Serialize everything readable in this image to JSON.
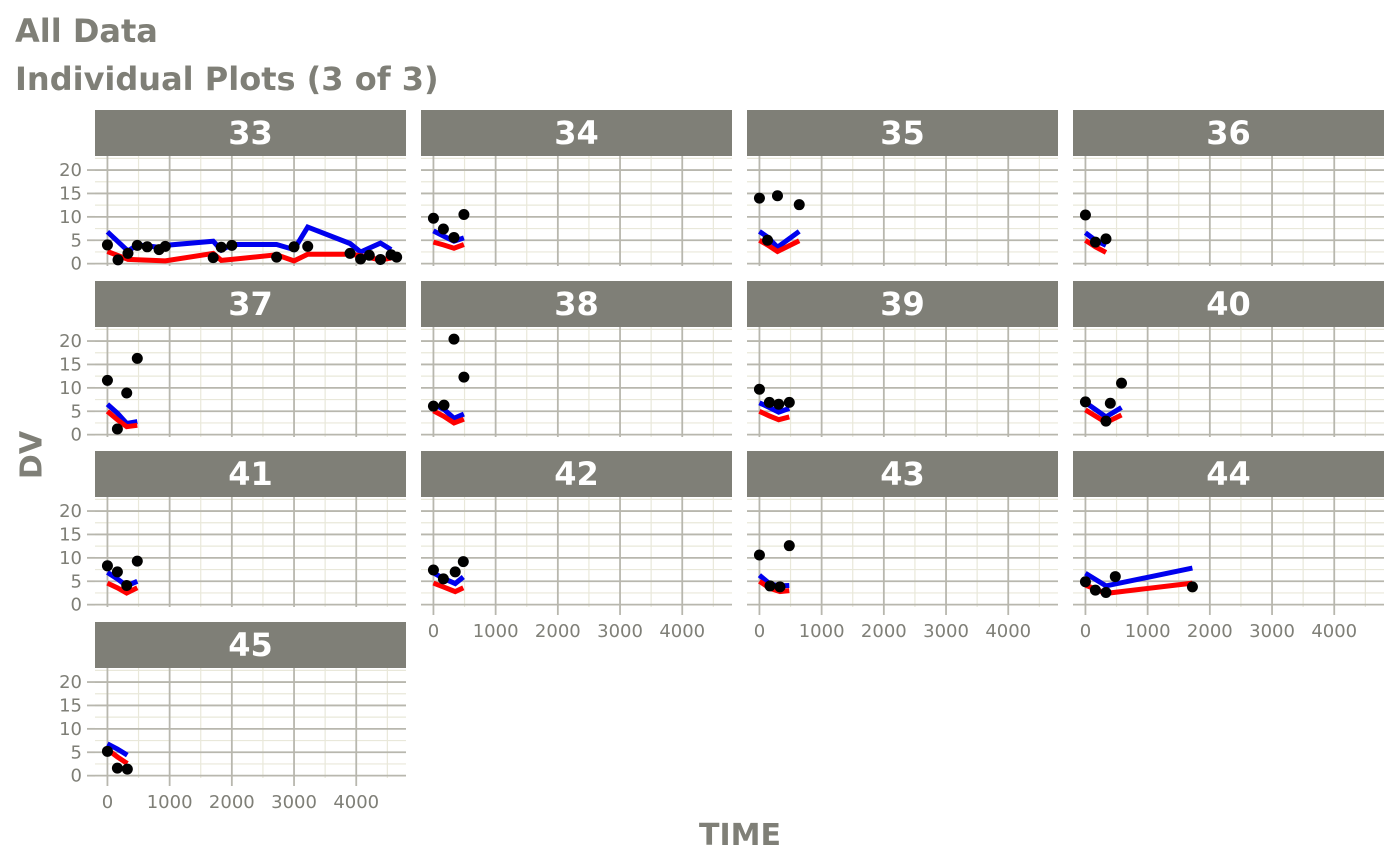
{
  "title": "All Data",
  "subtitle": "Individual Plots (3 of 3)",
  "xlabel": "TIME",
  "ylabel": "DV",
  "colors": {
    "strip_bg": "#7f7f77",
    "strip_text": "#ffffff",
    "grid_major": "#b8b7ae",
    "grid_minor": "#e9e8da",
    "axis_text": "#7f7f77",
    "observed": "#000000",
    "line_blue": "#0000ee",
    "line_red": "#ff0000"
  },
  "chart_data": {
    "type": "scatter",
    "layout": "facet-grid",
    "xlim": [
      -200,
      4800
    ],
    "ylim": [
      -0.5,
      23
    ],
    "x_ticks": [
      0,
      1000,
      2000,
      3000,
      4000
    ],
    "y_ticks": [
      0,
      5,
      10,
      15,
      20
    ],
    "x_tick_labels": [
      "0",
      "1000",
      "2000",
      "3000",
      "4000"
    ],
    "y_tick_labels": [
      "0",
      "5",
      "10",
      "15",
      "20"
    ],
    "grid": true,
    "facets": [
      {
        "id": "33",
        "points": [
          [
            0,
            4
          ],
          [
            170,
            0.8
          ],
          [
            330,
            2.2
          ],
          [
            480,
            3.9
          ],
          [
            640,
            3.6
          ],
          [
            830,
            3.0
          ],
          [
            930,
            3.7
          ],
          [
            1700,
            1.3
          ],
          [
            1830,
            3.5
          ],
          [
            2000,
            3.9
          ],
          [
            2720,
            1.4
          ],
          [
            3000,
            3.6
          ],
          [
            3220,
            3.7
          ],
          [
            3900,
            2.2
          ],
          [
            4070,
            1.0
          ],
          [
            4210,
            1.8
          ],
          [
            4390,
            0.9
          ],
          [
            4560,
            1.9
          ],
          [
            4650,
            1.4
          ]
        ],
        "blue": [
          [
            0,
            6.8
          ],
          [
            330,
            2.7
          ],
          [
            480,
            4.0
          ],
          [
            640,
            3.8
          ],
          [
            830,
            3.5
          ],
          [
            930,
            3.9
          ],
          [
            1700,
            4.8
          ],
          [
            1830,
            2.9
          ],
          [
            2000,
            4.1
          ],
          [
            2720,
            4.1
          ],
          [
            3000,
            3.0
          ],
          [
            3220,
            7.8
          ],
          [
            3900,
            4.3
          ],
          [
            4070,
            2.5
          ],
          [
            4390,
            4.4
          ],
          [
            4560,
            3.0
          ]
        ],
        "red": [
          [
            0,
            2.6
          ],
          [
            330,
            0.9
          ],
          [
            930,
            0.6
          ],
          [
            1700,
            2.2
          ],
          [
            1830,
            0.7
          ],
          [
            2000,
            0.9
          ],
          [
            2720,
            1.9
          ],
          [
            3000,
            0.6
          ],
          [
            3220,
            2.0
          ],
          [
            3900,
            2.0
          ],
          [
            4070,
            1.7
          ],
          [
            4390,
            0.8
          ],
          [
            4560,
            1.2
          ]
        ]
      },
      {
        "id": "34",
        "points": [
          [
            0,
            9.7
          ],
          [
            160,
            7.4
          ],
          [
            330,
            5.6
          ],
          [
            490,
            10.5
          ]
        ],
        "blue": [
          [
            0,
            7.0
          ],
          [
            160,
            5.9
          ],
          [
            330,
            4.8
          ],
          [
            490,
            5.5
          ]
        ],
        "red": [
          [
            0,
            4.6
          ],
          [
            160,
            4.0
          ],
          [
            330,
            3.3
          ],
          [
            490,
            4.1
          ]
        ]
      },
      {
        "id": "35",
        "points": [
          [
            0,
            14
          ],
          [
            130,
            5.0
          ],
          [
            290,
            14.5
          ],
          [
            640,
            12.6
          ]
        ],
        "blue": [
          [
            0,
            6.9
          ],
          [
            130,
            5.7
          ],
          [
            290,
            3.5
          ],
          [
            640,
            6.9
          ]
        ],
        "red": [
          [
            0,
            5.0
          ],
          [
            130,
            4.0
          ],
          [
            290,
            2.6
          ],
          [
            640,
            4.9
          ]
        ]
      },
      {
        "id": "36",
        "points": [
          [
            0,
            10.4
          ],
          [
            160,
            4.6
          ],
          [
            330,
            5.3
          ]
        ],
        "blue": [
          [
            0,
            6.6
          ],
          [
            160,
            5.0
          ],
          [
            330,
            3.9
          ]
        ],
        "red": [
          [
            0,
            5.0
          ],
          [
            160,
            3.6
          ],
          [
            330,
            2.4
          ]
        ]
      },
      {
        "id": "37",
        "points": [
          [
            0,
            11.6
          ],
          [
            160,
            1.2
          ],
          [
            310,
            8.9
          ],
          [
            480,
            16.3
          ]
        ],
        "blue": [
          [
            0,
            6.5
          ],
          [
            160,
            4.6
          ],
          [
            310,
            2.4
          ],
          [
            480,
            2.8
          ]
        ],
        "red": [
          [
            0,
            5.0
          ],
          [
            160,
            3.2
          ],
          [
            310,
            1.7
          ],
          [
            480,
            2.0
          ]
        ]
      },
      {
        "id": "38",
        "points": [
          [
            0,
            6.1
          ],
          [
            170,
            6.3
          ],
          [
            330,
            20.4
          ],
          [
            490,
            12.3
          ]
        ],
        "blue": [
          [
            0,
            6.5
          ],
          [
            170,
            5.4
          ],
          [
            330,
            3.5
          ],
          [
            490,
            4.4
          ]
        ],
        "red": [
          [
            0,
            5.1
          ],
          [
            170,
            3.9
          ],
          [
            330,
            2.5
          ],
          [
            490,
            3.3
          ]
        ]
      },
      {
        "id": "39",
        "points": [
          [
            0,
            9.7
          ],
          [
            160,
            6.9
          ],
          [
            310,
            6.5
          ],
          [
            480,
            6.9
          ]
        ],
        "blue": [
          [
            0,
            6.8
          ],
          [
            160,
            5.8
          ],
          [
            310,
            4.8
          ],
          [
            480,
            5.6
          ]
        ],
        "red": [
          [
            0,
            5.0
          ],
          [
            160,
            4.0
          ],
          [
            310,
            3.2
          ],
          [
            480,
            3.8
          ]
        ]
      },
      {
        "id": "40",
        "points": [
          [
            0,
            7.0
          ],
          [
            330,
            2.9
          ],
          [
            400,
            6.7
          ],
          [
            580,
            11.0
          ]
        ],
        "blue": [
          [
            0,
            6.9
          ],
          [
            330,
            3.8
          ],
          [
            580,
            5.8
          ]
        ],
        "red": [
          [
            0,
            5.3
          ],
          [
            330,
            2.6
          ],
          [
            580,
            4.2
          ]
        ]
      },
      {
        "id": "41",
        "points": [
          [
            0,
            8.3
          ],
          [
            160,
            7.0
          ],
          [
            310,
            4.1
          ],
          [
            480,
            9.3
          ]
        ],
        "blue": [
          [
            0,
            6.9
          ],
          [
            160,
            5.5
          ],
          [
            310,
            4.0
          ],
          [
            480,
            5.0
          ]
        ],
        "red": [
          [
            0,
            4.6
          ],
          [
            160,
            3.6
          ],
          [
            310,
            2.5
          ],
          [
            480,
            3.6
          ]
        ]
      },
      {
        "id": "42",
        "points": [
          [
            0,
            7.4
          ],
          [
            160,
            5.5
          ],
          [
            350,
            7.0
          ],
          [
            480,
            9.2
          ]
        ],
        "blue": [
          [
            0,
            6.8
          ],
          [
            160,
            5.6
          ],
          [
            350,
            4.5
          ],
          [
            480,
            5.9
          ]
        ],
        "red": [
          [
            0,
            4.6
          ],
          [
            160,
            3.8
          ],
          [
            350,
            2.8
          ],
          [
            480,
            3.6
          ]
        ]
      },
      {
        "id": "43",
        "points": [
          [
            0,
            10.6
          ],
          [
            170,
            4.0
          ],
          [
            330,
            3.8
          ],
          [
            480,
            12.6
          ]
        ],
        "blue": [
          [
            0,
            6.3
          ],
          [
            170,
            4.4
          ],
          [
            330,
            4.0
          ],
          [
            480,
            4.1
          ]
        ],
        "red": [
          [
            0,
            5.0
          ],
          [
            170,
            3.5
          ],
          [
            330,
            2.8
          ],
          [
            480,
            3.0
          ]
        ]
      },
      {
        "id": "44",
        "points": [
          [
            0,
            4.9
          ],
          [
            160,
            3.1
          ],
          [
            330,
            2.6
          ],
          [
            480,
            6.0
          ],
          [
            1720,
            3.8
          ]
        ],
        "blue": [
          [
            0,
            6.7
          ],
          [
            330,
            4.0
          ],
          [
            1720,
            7.8
          ]
        ],
        "red": [
          [
            0,
            4.2
          ],
          [
            330,
            2.4
          ],
          [
            1720,
            4.6
          ]
        ]
      },
      {
        "id": "45",
        "points": [
          [
            0,
            5.2
          ],
          [
            160,
            1.6
          ],
          [
            320,
            1.4
          ]
        ],
        "blue": [
          [
            0,
            6.8
          ],
          [
            160,
            5.7
          ],
          [
            320,
            4.4
          ]
        ],
        "red": [
          [
            0,
            5.6
          ],
          [
            160,
            4.0
          ],
          [
            320,
            2.6
          ]
        ]
      }
    ]
  }
}
